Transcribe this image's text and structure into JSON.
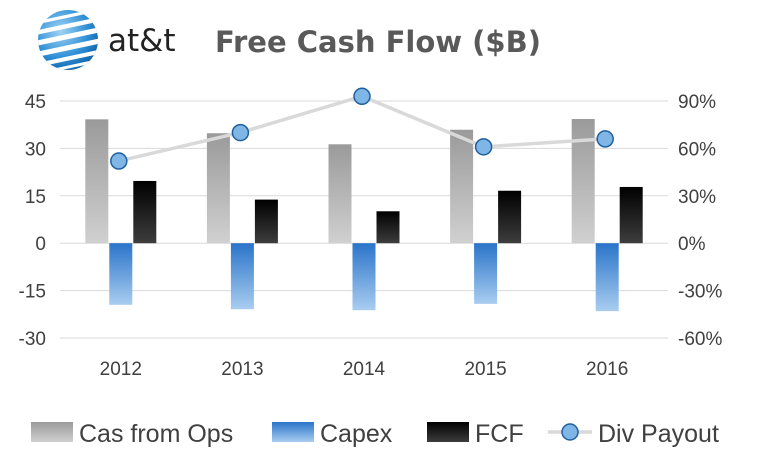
{
  "logo_text": "at&t",
  "colors": {
    "cash_from_ops": "#a6a6a6",
    "capex": "#2f7fd0",
    "fcf": "#1a1a1a",
    "div_payout_line": "#d9d9d9",
    "div_payout_marker": "#7fb6e6",
    "grid": "#d9d9d9",
    "text": "#404040",
    "title": "#595959"
  },
  "chart_data": {
    "type": "bar",
    "title": "Free Cash Flow ($B)",
    "categories": [
      "2012",
      "2013",
      "2014",
      "2015",
      "2016"
    ],
    "series": [
      {
        "name": "Cas from Ops",
        "type": "bar",
        "axis": "left",
        "values": [
          39.2,
          34.8,
          31.3,
          35.9,
          39.3
        ]
      },
      {
        "name": "Capex",
        "type": "bar",
        "axis": "left",
        "values": [
          -19.5,
          -20.9,
          -21.2,
          -19.2,
          -21.5
        ]
      },
      {
        "name": "FCF",
        "type": "bar",
        "axis": "left",
        "values": [
          19.7,
          13.8,
          10.1,
          16.6,
          17.8
        ]
      },
      {
        "name": "Div Payout",
        "type": "line",
        "axis": "right",
        "values": [
          52,
          70,
          93,
          61,
          66
        ]
      }
    ],
    "y_left": {
      "ylim": [
        -30,
        45
      ],
      "ticks": [
        45,
        30,
        15,
        0,
        -15,
        -30
      ],
      "tick_labels": [
        "45",
        "30",
        "15",
        "0",
        "-15",
        "-30"
      ]
    },
    "y_right": {
      "ylim": [
        -60,
        90
      ],
      "ticks": [
        90,
        60,
        30,
        0,
        -30,
        -60
      ],
      "tick_labels": [
        "90%",
        "60%",
        "30%",
        "0%",
        "-30%",
        "-60%"
      ]
    },
    "grid": true,
    "legend": "bottom"
  }
}
